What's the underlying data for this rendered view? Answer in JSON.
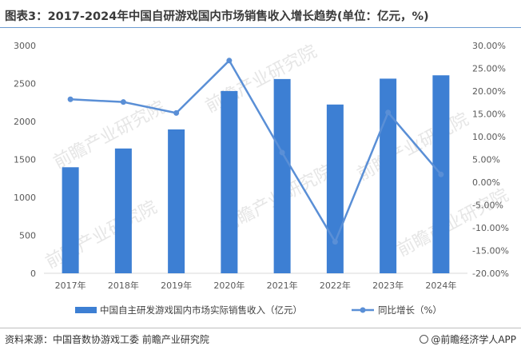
{
  "title": "图表3：2017-2024年中国自研游戏国内市场销售收入增长趋势(单位：亿元，%)",
  "source": "资料来源：中国音数协游戏工委 前瞻产业研究院",
  "brand": "@前瞻经济学人APP",
  "watermark": "前瞻产业研究院",
  "colors": {
    "bar": "#3d7fd3",
    "line": "#5a8fd6"
  },
  "chart_data": {
    "type": "bar",
    "categories": [
      "2017年",
      "2018年",
      "2019年",
      "2020年",
      "2021年",
      "2022年",
      "2023年",
      "2024年"
    ],
    "series": [
      {
        "name": "中国自主研发游戏国内市场实际销售收入（亿元）",
        "type": "bar",
        "axis": "left",
        "values": [
          1397,
          1644,
          1895,
          2401,
          2559,
          2223,
          2564,
          2608
        ]
      },
      {
        "name": "同比增长（%）",
        "type": "line",
        "axis": "right",
        "values": [
          18.2,
          17.6,
          15.2,
          26.7,
          6.5,
          -13.1,
          15.3,
          1.7
        ]
      }
    ],
    "ylim": [
      0,
      3000
    ],
    "y_ticks": [
      "0",
      "500",
      "1000",
      "1500",
      "2000",
      "2500",
      "3000"
    ],
    "y2lim": [
      -20,
      30
    ],
    "y2_ticks": [
      "-20.00%",
      "-15.00%",
      "-10.00%",
      "-5.00%",
      "0.00%",
      "5.00%",
      "10.00%",
      "15.00%",
      "20.00%",
      "25.00%",
      "30.00%"
    ],
    "grid": false,
    "legend": "bottom"
  }
}
